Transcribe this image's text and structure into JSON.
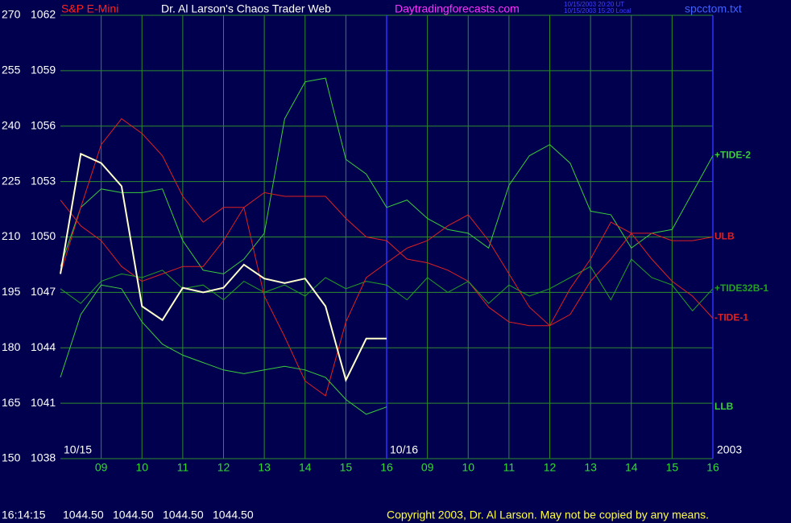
{
  "chart_data": {
    "type": "line",
    "instrument": "S&P E-Mini",
    "title": "Dr. Al Larson's Chaos Trader Web",
    "website": "Daytradingforecasts.com",
    "timestamps": [
      "10/15/2003 20:20 UT",
      "10/15/2003 15:20 Local"
    ],
    "filename": "spcctom.txt",
    "date_labels": [
      {
        "value": 0,
        "label": "10/15"
      },
      {
        "value": 8,
        "label": "10/16"
      }
    ],
    "year": "2003",
    "x": [
      0,
      0.5,
      1,
      1.5,
      2,
      2.5,
      3,
      3.5,
      4,
      4.5,
      5,
      5.5,
      6,
      6.5,
      7,
      7.5,
      8,
      8.5,
      9,
      9.5,
      10,
      10.5,
      11,
      11.5,
      12,
      12.5,
      13,
      13.5,
      14,
      14.5,
      15,
      15.5,
      16
    ],
    "xlim": [
      0,
      16
    ],
    "xticks": [
      {
        "value": 1,
        "label": "09"
      },
      {
        "value": 2,
        "label": "10"
      },
      {
        "value": 3,
        "label": "11"
      },
      {
        "value": 4,
        "label": "12"
      },
      {
        "value": 5,
        "label": "13"
      },
      {
        "value": 6,
        "label": "14"
      },
      {
        "value": 7,
        "label": "15"
      },
      {
        "value": 8,
        "label": "16"
      },
      {
        "value": 9,
        "label": "09"
      },
      {
        "value": 10,
        "label": "10"
      },
      {
        "value": 11,
        "label": "11"
      },
      {
        "value": 12,
        "label": "12"
      },
      {
        "value": 13,
        "label": "13"
      },
      {
        "value": 14,
        "label": "14"
      },
      {
        "value": 15,
        "label": "15"
      },
      {
        "value": 16,
        "label": "16"
      }
    ],
    "day_breaks": [
      8,
      16
    ],
    "ylim": [
      150,
      270
    ],
    "yticks": [
      150,
      165,
      180,
      195,
      210,
      225,
      240,
      255,
      270
    ],
    "y2lim": [
      1038,
      1062
    ],
    "y2ticks": [
      1038,
      1041,
      1044,
      1047,
      1050,
      1053,
      1056,
      1059,
      1062
    ],
    "grid": true,
    "grid_color": "#2e8b2e",
    "day_break_color": "#3030ff",
    "series": [
      {
        "name": "+TIDE-2",
        "color": "#3ccc3c",
        "values": [
          202,
          218,
          223,
          222,
          222,
          223,
          209,
          201,
          200,
          204,
          211,
          242,
          252,
          253,
          231,
          227,
          218,
          220,
          215,
          212,
          211,
          207,
          224,
          232,
          235,
          230,
          217,
          216,
          207,
          211,
          212,
          222,
          232
        ]
      },
      {
        "name": "ULB",
        "color": "#e02020",
        "values": [
          220,
          213,
          209,
          202,
          198,
          200,
          202,
          202,
          209,
          218,
          222,
          221,
          221,
          221,
          215,
          210,
          209,
          204,
          203,
          201,
          198,
          191,
          187,
          186,
          186,
          189,
          198,
          204,
          211,
          211,
          209,
          209,
          210
        ]
      },
      {
        "name": "+TIDE32B-1",
        "color": "#24a024",
        "values": [
          196,
          192,
          198,
          200,
          199,
          201,
          196,
          197,
          193,
          198,
          195,
          197,
          194,
          199,
          196,
          198,
          197,
          193,
          199,
          195,
          198,
          192,
          197,
          194,
          196,
          199,
          202,
          193,
          204,
          199,
          197,
          190,
          196
        ]
      },
      {
        "name": "-TIDE-1",
        "color": "#e02020",
        "values": [
          200,
          218,
          235,
          242,
          238,
          232,
          221,
          214,
          218,
          218,
          194,
          183,
          171,
          167,
          187,
          199,
          203,
          207,
          209,
          213,
          216,
          209,
          200,
          191,
          186,
          196,
          204,
          214,
          211,
          204,
          198,
          194,
          188
        ]
      },
      {
        "name": "LLB",
        "color": "#3ccc3c",
        "values": [
          172,
          189,
          197,
          196,
          187,
          181,
          178,
          176,
          174,
          173,
          174,
          175,
          174,
          172,
          166,
          162,
          164,
          null,
          null,
          null,
          null,
          null,
          null,
          null,
          null,
          null,
          null,
          null,
          null,
          null,
          null,
          null,
          null
        ]
      }
    ],
    "price_series": {
      "axis": "y2",
      "color": "#ffffcc",
      "values": [
        1048.0,
        1054.5,
        1054.0,
        1052.75,
        1046.25,
        1045.5,
        1047.25,
        1047.0,
        1047.25,
        1048.5,
        1047.75,
        1047.5,
        1047.75,
        1046.25,
        1042.25,
        1044.5,
        1044.5,
        null,
        null,
        null,
        null,
        null,
        null,
        null,
        null,
        null,
        null,
        null,
        null,
        null,
        null,
        null,
        null
      ]
    },
    "status": {
      "time": "16:14:15",
      "quotes": [
        "1044.50",
        "1044.50",
        "1044.50",
        "1044.50"
      ]
    },
    "copyright": "Copyright 2003, Dr. Al Larson. May not be copied by any means."
  }
}
